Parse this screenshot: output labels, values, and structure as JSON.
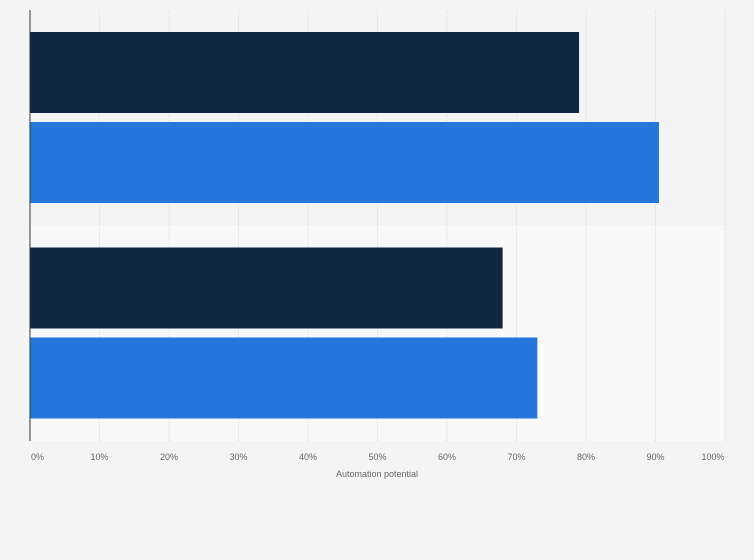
{
  "chart_data": {
    "type": "bar",
    "orientation": "horizontal",
    "categories": [
      "",
      ""
    ],
    "series": [
      {
        "color": "#0f2741",
        "values": [
          79,
          68
        ]
      },
      {
        "color": "#2577dc",
        "values": [
          90.5,
          73
        ]
      }
    ],
    "title": "",
    "xlabel": "Automation potential",
    "ylabel": "",
    "xlim": [
      0,
      100
    ],
    "x_ticks": [
      "0%",
      "10%",
      "20%",
      "30%",
      "40%",
      "50%",
      "60%",
      "70%",
      "80%",
      "90%",
      "100%"
    ],
    "grid": true,
    "legend": "none",
    "colors": {
      "background": "#f4f4f4",
      "band_alternate": "#f9f9f9",
      "gridline": "#dddddd",
      "axis": "#333333"
    }
  }
}
